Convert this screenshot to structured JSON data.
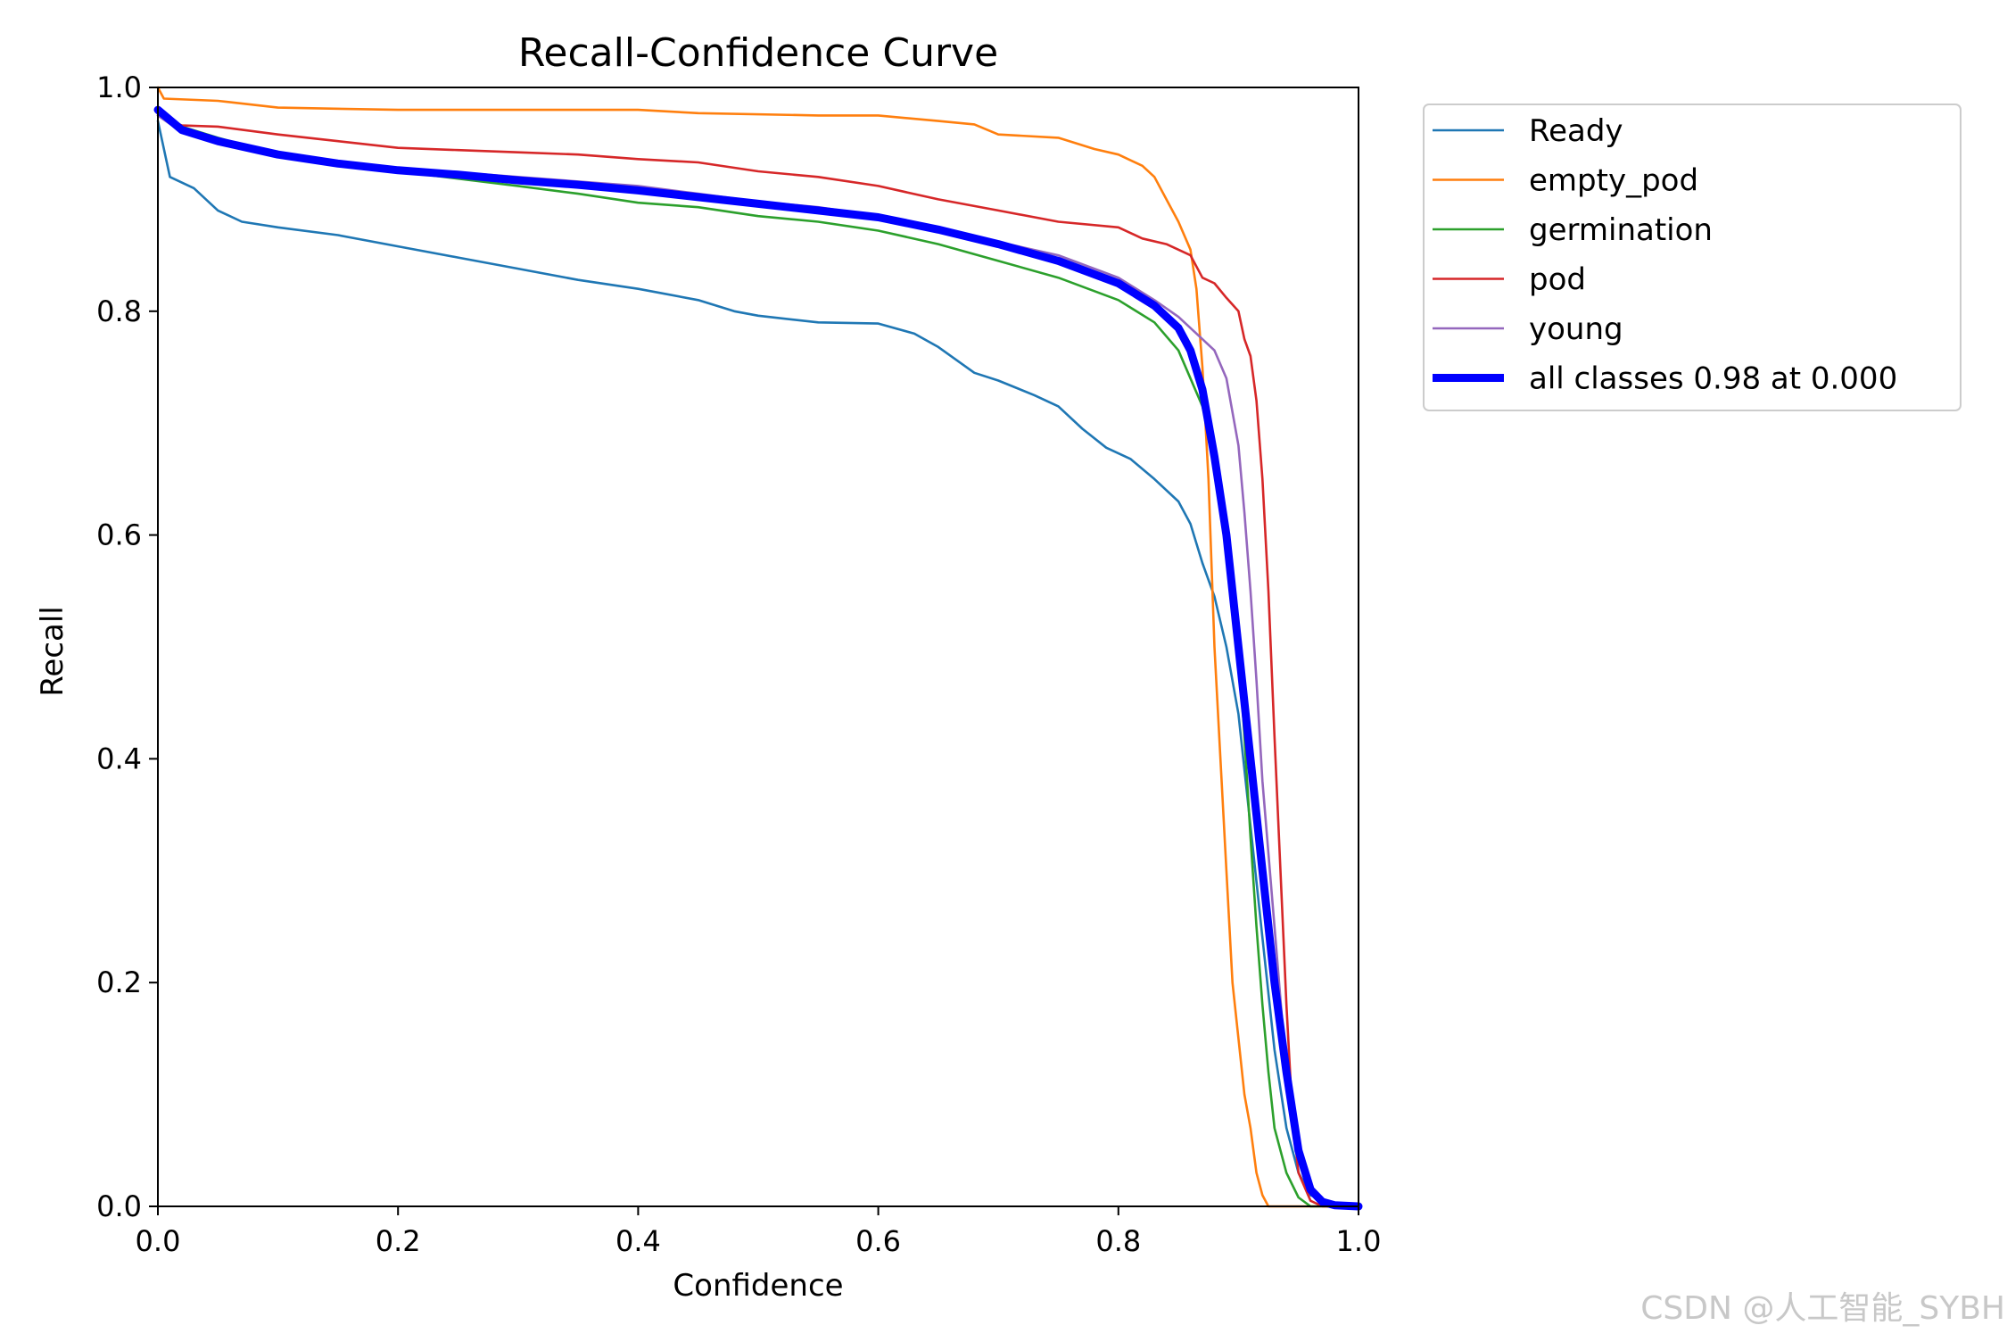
{
  "watermark": "CSDN @人工智能_SYBH",
  "chart_data": {
    "type": "line",
    "title": "Recall-Confidence Curve",
    "xlabel": "Confidence",
    "ylabel": "Recall",
    "xlim": [
      0.0,
      1.0
    ],
    "ylim": [
      0.0,
      1.0
    ],
    "xticks": [
      0.0,
      0.2,
      0.4,
      0.6,
      0.8,
      1.0
    ],
    "yticks": [
      0.0,
      0.2,
      0.4,
      0.6,
      0.8,
      1.0
    ],
    "xtick_labels": [
      "0.0",
      "0.2",
      "0.4",
      "0.6",
      "0.8",
      "1.0"
    ],
    "ytick_labels": [
      "0.0",
      "0.2",
      "0.4",
      "0.6",
      "0.8",
      "1.0"
    ],
    "grid": false,
    "legend_position": "outside-top-right",
    "series": [
      {
        "name": "Ready",
        "color": "#1f77b4",
        "points": [
          [
            0.0,
            0.97
          ],
          [
            0.01,
            0.92
          ],
          [
            0.03,
            0.91
          ],
          [
            0.05,
            0.89
          ],
          [
            0.07,
            0.88
          ],
          [
            0.1,
            0.875
          ],
          [
            0.15,
            0.868
          ],
          [
            0.2,
            0.858
          ],
          [
            0.25,
            0.848
          ],
          [
            0.3,
            0.838
          ],
          [
            0.35,
            0.828
          ],
          [
            0.4,
            0.82
          ],
          [
            0.45,
            0.81
          ],
          [
            0.48,
            0.8
          ],
          [
            0.5,
            0.796
          ],
          [
            0.55,
            0.79
          ],
          [
            0.6,
            0.789
          ],
          [
            0.63,
            0.78
          ],
          [
            0.65,
            0.768
          ],
          [
            0.68,
            0.745
          ],
          [
            0.7,
            0.738
          ],
          [
            0.73,
            0.725
          ],
          [
            0.75,
            0.715
          ],
          [
            0.77,
            0.695
          ],
          [
            0.79,
            0.678
          ],
          [
            0.81,
            0.668
          ],
          [
            0.83,
            0.65
          ],
          [
            0.85,
            0.63
          ],
          [
            0.86,
            0.61
          ],
          [
            0.87,
            0.575
          ],
          [
            0.88,
            0.545
          ],
          [
            0.89,
            0.5
          ],
          [
            0.9,
            0.44
          ],
          [
            0.91,
            0.34
          ],
          [
            0.92,
            0.24
          ],
          [
            0.93,
            0.14
          ],
          [
            0.94,
            0.07
          ],
          [
            0.95,
            0.03
          ],
          [
            0.96,
            0.01
          ],
          [
            0.98,
            0.002
          ],
          [
            1.0,
            0.0
          ]
        ]
      },
      {
        "name": "empty_pod",
        "color": "#ff7f0e",
        "points": [
          [
            0.0,
            1.0
          ],
          [
            0.005,
            0.99
          ],
          [
            0.05,
            0.988
          ],
          [
            0.1,
            0.982
          ],
          [
            0.2,
            0.98
          ],
          [
            0.4,
            0.98
          ],
          [
            0.45,
            0.977
          ],
          [
            0.55,
            0.975
          ],
          [
            0.6,
            0.975
          ],
          [
            0.65,
            0.97
          ],
          [
            0.68,
            0.967
          ],
          [
            0.7,
            0.958
          ],
          [
            0.75,
            0.955
          ],
          [
            0.78,
            0.945
          ],
          [
            0.8,
            0.94
          ],
          [
            0.82,
            0.93
          ],
          [
            0.83,
            0.92
          ],
          [
            0.84,
            0.9
          ],
          [
            0.85,
            0.88
          ],
          [
            0.86,
            0.855
          ],
          [
            0.865,
            0.82
          ],
          [
            0.87,
            0.75
          ],
          [
            0.875,
            0.65
          ],
          [
            0.88,
            0.5
          ],
          [
            0.885,
            0.4
          ],
          [
            0.89,
            0.3
          ],
          [
            0.895,
            0.2
          ],
          [
            0.9,
            0.15
          ],
          [
            0.905,
            0.1
          ],
          [
            0.91,
            0.07
          ],
          [
            0.915,
            0.03
          ],
          [
            0.92,
            0.01
          ],
          [
            0.925,
            0.0
          ],
          [
            1.0,
            0.0
          ]
        ]
      },
      {
        "name": "germination",
        "color": "#2ca02c",
        "points": [
          [
            0.0,
            0.98
          ],
          [
            0.02,
            0.965
          ],
          [
            0.05,
            0.955
          ],
          [
            0.1,
            0.94
          ],
          [
            0.2,
            0.925
          ],
          [
            0.3,
            0.912
          ],
          [
            0.35,
            0.905
          ],
          [
            0.4,
            0.897
          ],
          [
            0.45,
            0.893
          ],
          [
            0.5,
            0.885
          ],
          [
            0.55,
            0.88
          ],
          [
            0.6,
            0.872
          ],
          [
            0.65,
            0.86
          ],
          [
            0.7,
            0.845
          ],
          [
            0.75,
            0.83
          ],
          [
            0.8,
            0.81
          ],
          [
            0.83,
            0.79
          ],
          [
            0.85,
            0.765
          ],
          [
            0.87,
            0.715
          ],
          [
            0.88,
            0.67
          ],
          [
            0.89,
            0.6
          ],
          [
            0.9,
            0.5
          ],
          [
            0.905,
            0.42
          ],
          [
            0.91,
            0.33
          ],
          [
            0.915,
            0.25
          ],
          [
            0.92,
            0.18
          ],
          [
            0.925,
            0.12
          ],
          [
            0.93,
            0.07
          ],
          [
            0.94,
            0.03
          ],
          [
            0.95,
            0.008
          ],
          [
            0.96,
            0.0
          ],
          [
            1.0,
            0.0
          ]
        ]
      },
      {
        "name": "pod",
        "color": "#d62728",
        "points": [
          [
            0.0,
            0.975
          ],
          [
            0.02,
            0.966
          ],
          [
            0.05,
            0.965
          ],
          [
            0.1,
            0.958
          ],
          [
            0.15,
            0.952
          ],
          [
            0.2,
            0.946
          ],
          [
            0.25,
            0.944
          ],
          [
            0.3,
            0.942
          ],
          [
            0.35,
            0.94
          ],
          [
            0.4,
            0.936
          ],
          [
            0.45,
            0.933
          ],
          [
            0.5,
            0.925
          ],
          [
            0.55,
            0.92
          ],
          [
            0.6,
            0.912
          ],
          [
            0.65,
            0.9
          ],
          [
            0.7,
            0.89
          ],
          [
            0.75,
            0.88
          ],
          [
            0.8,
            0.875
          ],
          [
            0.82,
            0.865
          ],
          [
            0.84,
            0.86
          ],
          [
            0.86,
            0.85
          ],
          [
            0.87,
            0.83
          ],
          [
            0.88,
            0.825
          ],
          [
            0.89,
            0.812
          ],
          [
            0.9,
            0.8
          ],
          [
            0.905,
            0.775
          ],
          [
            0.91,
            0.76
          ],
          [
            0.915,
            0.72
          ],
          [
            0.92,
            0.65
          ],
          [
            0.925,
            0.55
          ],
          [
            0.93,
            0.42
          ],
          [
            0.935,
            0.3
          ],
          [
            0.94,
            0.18
          ],
          [
            0.945,
            0.08
          ],
          [
            0.95,
            0.03
          ],
          [
            0.96,
            0.005
          ],
          [
            0.97,
            0.0
          ],
          [
            1.0,
            0.0
          ]
        ]
      },
      {
        "name": "young",
        "color": "#9467bd",
        "points": [
          [
            0.0,
            0.975
          ],
          [
            0.02,
            0.96
          ],
          [
            0.05,
            0.95
          ],
          [
            0.1,
            0.94
          ],
          [
            0.2,
            0.928
          ],
          [
            0.3,
            0.92
          ],
          [
            0.4,
            0.912
          ],
          [
            0.45,
            0.905
          ],
          [
            0.5,
            0.898
          ],
          [
            0.55,
            0.893
          ],
          [
            0.6,
            0.885
          ],
          [
            0.65,
            0.875
          ],
          [
            0.7,
            0.862
          ],
          [
            0.75,
            0.85
          ],
          [
            0.8,
            0.83
          ],
          [
            0.83,
            0.81
          ],
          [
            0.85,
            0.795
          ],
          [
            0.87,
            0.775
          ],
          [
            0.88,
            0.765
          ],
          [
            0.89,
            0.74
          ],
          [
            0.9,
            0.68
          ],
          [
            0.905,
            0.62
          ],
          [
            0.91,
            0.55
          ],
          [
            0.915,
            0.47
          ],
          [
            0.92,
            0.38
          ],
          [
            0.93,
            0.25
          ],
          [
            0.94,
            0.12
          ],
          [
            0.95,
            0.05
          ],
          [
            0.96,
            0.015
          ],
          [
            0.97,
            0.002
          ],
          [
            1.0,
            0.0
          ]
        ]
      },
      {
        "name": "all classes 0.98 at 0.000",
        "color": "#0000ff",
        "bold": true,
        "points": [
          [
            0.0,
            0.98
          ],
          [
            0.02,
            0.962
          ],
          [
            0.05,
            0.952
          ],
          [
            0.1,
            0.94
          ],
          [
            0.15,
            0.932
          ],
          [
            0.2,
            0.926
          ],
          [
            0.25,
            0.922
          ],
          [
            0.3,
            0.917
          ],
          [
            0.35,
            0.913
          ],
          [
            0.4,
            0.908
          ],
          [
            0.45,
            0.902
          ],
          [
            0.5,
            0.896
          ],
          [
            0.55,
            0.89
          ],
          [
            0.6,
            0.884
          ],
          [
            0.65,
            0.873
          ],
          [
            0.7,
            0.86
          ],
          [
            0.75,
            0.845
          ],
          [
            0.8,
            0.825
          ],
          [
            0.83,
            0.805
          ],
          [
            0.85,
            0.785
          ],
          [
            0.86,
            0.765
          ],
          [
            0.87,
            0.73
          ],
          [
            0.88,
            0.67
          ],
          [
            0.89,
            0.6
          ],
          [
            0.9,
            0.5
          ],
          [
            0.91,
            0.4
          ],
          [
            0.92,
            0.3
          ],
          [
            0.93,
            0.2
          ],
          [
            0.94,
            0.12
          ],
          [
            0.95,
            0.05
          ],
          [
            0.96,
            0.015
          ],
          [
            0.97,
            0.004
          ],
          [
            0.98,
            0.001
          ],
          [
            1.0,
            0.0
          ]
        ]
      }
    ]
  }
}
